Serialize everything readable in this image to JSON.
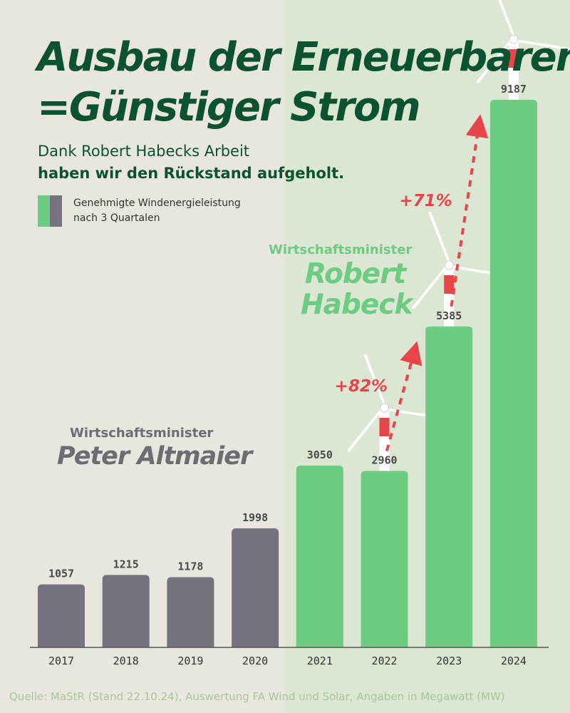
{
  "header": {
    "title_line1": "Ausbau der Erneuerbaren",
    "title_line2": "=Günstiger Strom",
    "subtitle_line1": "Dank Robert Habecks Arbeit",
    "subtitle_line2": "haben wir den Rückstand aufgeholt."
  },
  "legend": {
    "line1": "Genehmigte Windenergieleistung",
    "line2": "nach 3 Quartalen",
    "colors": [
      "#6ccc82",
      "#75737d"
    ]
  },
  "annotations": {
    "altmaier_role": "Wirtschaftsminister",
    "altmaier_name": "Peter Altmaier",
    "habeck_role": "Wirtschaftsminister",
    "habeck_name_line1": "Robert",
    "habeck_name_line2": "Habeck",
    "growth_1": "+82%",
    "growth_2": "+71%"
  },
  "source": "Quelle: MaStR (Stand 22.10.24), Auswertung FA Wind und Solar, Angaben in Megawatt (MW)",
  "colors": {
    "title": "#0b5230",
    "green_bar": "#6ccc82",
    "gray_bar": "#75737d",
    "arrow": "#e8454b",
    "bg_left": "#e9e6e0",
    "bg_right": "#dbe6d3"
  },
  "chart_data": {
    "type": "bar",
    "categories": [
      "2017",
      "2018",
      "2019",
      "2020",
      "2021",
      "2022",
      "2023",
      "2024"
    ],
    "values": [
      1057,
      1215,
      1178,
      1998,
      3050,
      2960,
      5385,
      9187
    ],
    "bar_groups": [
      "gray",
      "gray",
      "gray",
      "gray",
      "green",
      "green",
      "green",
      "green"
    ],
    "growth_annotations": [
      {
        "from": "2022",
        "to": "2023",
        "label": "+82%"
      },
      {
        "from": "2023",
        "to": "2024",
        "label": "+71%"
      }
    ],
    "ylim": [
      0,
      9187
    ],
    "grid": false
  }
}
